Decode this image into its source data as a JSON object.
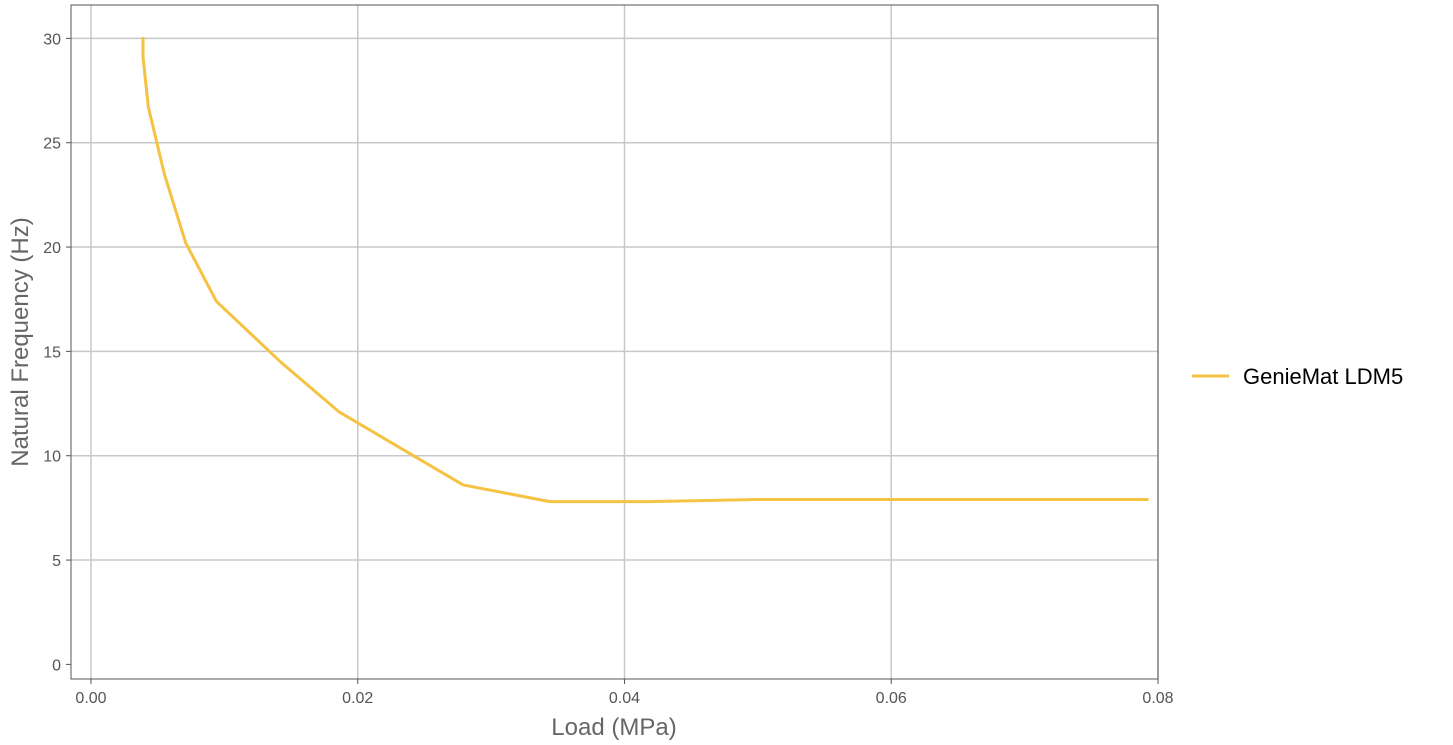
{
  "chart_data": {
    "type": "line",
    "title": "",
    "xlabel": "Load (MPa)",
    "ylabel": "Natural Frequency (Hz)",
    "xlim": [
      -0.0015,
      0.08
    ],
    "ylim": [
      -0.7,
      31.6
    ],
    "x_ticks": [
      0.0,
      0.02,
      0.04,
      0.06,
      0.08
    ],
    "x_tick_labels": [
      "0.00",
      "0.02",
      "0.04",
      "0.06",
      "0.08"
    ],
    "y_ticks": [
      0,
      5,
      10,
      15,
      20,
      25,
      30
    ],
    "y_tick_labels": [
      "0",
      "5",
      "10",
      "15",
      "20",
      "25",
      "30"
    ],
    "grid": true,
    "legend_position": "right",
    "series": [
      {
        "name": "GenieMat LDM5",
        "color": "#F5C243",
        "x": [
          0.0039,
          0.0039,
          0.0043,
          0.0055,
          0.0071,
          0.0094,
          0.0142,
          0.0186,
          0.0279,
          0.0344,
          0.0418,
          0.05,
          0.06,
          0.07,
          0.0792
        ],
        "y": [
          30.0,
          29.1,
          26.7,
          23.5,
          20.2,
          17.4,
          14.5,
          12.1,
          8.6,
          7.8,
          7.8,
          7.9,
          7.9,
          7.9,
          7.9
        ]
      }
    ]
  }
}
